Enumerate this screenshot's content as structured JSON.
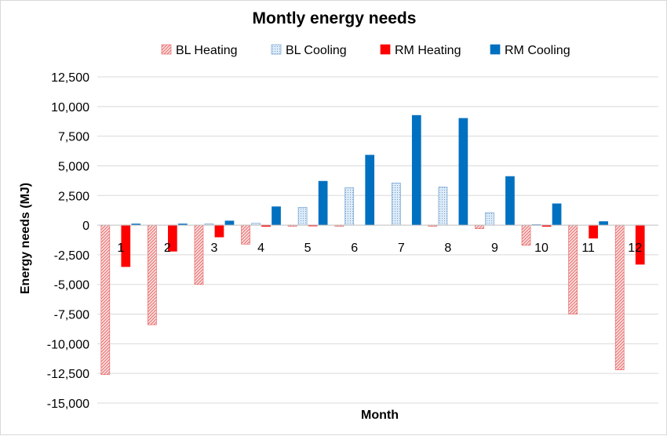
{
  "chart_data": {
    "type": "bar",
    "title": "Montly energy needs",
    "xlabel": "Month",
    "ylabel": "Energy needs  (MJ)",
    "ylim": [
      -15000,
      12500
    ],
    "ytick_step": 2500,
    "yticks": [
      "12,500",
      "10,000",
      "7,500",
      "5,000",
      "2,500",
      "0",
      "-2,500",
      "-5,000",
      "-7,500",
      "-10,000",
      "-12,500",
      "-15,000"
    ],
    "categories": [
      "1",
      "2",
      "3",
      "4",
      "5",
      "6",
      "7",
      "8",
      "9",
      "10",
      "11",
      "12"
    ],
    "grid": true,
    "legend_position": "top",
    "series": [
      {
        "name": "BL Heating",
        "color": "#f4a6a6",
        "pattern": "hatched",
        "values": [
          -12600,
          -8400,
          -5000,
          -1600,
          -100,
          -100,
          0,
          -100,
          -300,
          -1700,
          -7500,
          -12200
        ]
      },
      {
        "name": "BL Cooling",
        "color": "#bdd7ee",
        "pattern": "dotted",
        "values": [
          0,
          0,
          100,
          150,
          1500,
          3150,
          3550,
          3200,
          1050,
          50,
          0,
          0
        ]
      },
      {
        "name": "RM Heating",
        "color": "#ff0000",
        "pattern": "solid",
        "values": [
          -3500,
          -2200,
          -1000,
          -100,
          -50,
          0,
          0,
          0,
          0,
          -100,
          -1100,
          -3300
        ]
      },
      {
        "name": "RM Cooling",
        "color": "#0070c0",
        "pattern": "solid",
        "values": [
          100,
          100,
          350,
          1550,
          3700,
          5900,
          9250,
          9000,
          4100,
          1800,
          300,
          0
        ]
      }
    ]
  }
}
